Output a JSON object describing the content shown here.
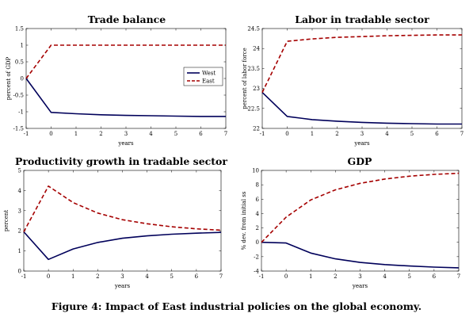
{
  "caption": "Figure 4: Impact of East industrial policies on the global economy.",
  "colors": {
    "west": "#00005a",
    "east": "#a50000",
    "axis": "#000000"
  },
  "chart_data": [
    {
      "type": "line",
      "title": "Trade balance",
      "xlabel": "years",
      "ylabel": "percent of GDP",
      "xlim": [
        -1,
        7
      ],
      "ylim": [
        -1.5,
        1.5
      ],
      "xticks": [
        -1,
        0,
        1,
        2,
        3,
        4,
        5,
        6,
        7
      ],
      "yticks": [
        -1.5,
        -1,
        -0.5,
        0,
        0.5,
        1,
        1.5
      ],
      "ytick_labels": [
        "-1.5",
        "-1",
        "-0.5",
        "0",
        "0.5",
        "1",
        "1.5"
      ],
      "legend": {
        "position": "center-right",
        "entries": [
          "West",
          "East"
        ]
      },
      "x": [
        -1,
        0,
        1,
        2,
        3,
        4,
        5,
        6,
        7
      ],
      "series": [
        {
          "name": "West",
          "style": "solid",
          "color": "#00005a",
          "values": [
            0.0,
            -1.02,
            -1.06,
            -1.09,
            -1.11,
            -1.12,
            -1.13,
            -1.14,
            -1.14
          ]
        },
        {
          "name": "East",
          "style": "dashed",
          "color": "#a50000",
          "values": [
            0.0,
            1.0,
            1.0,
            1.0,
            1.0,
            1.0,
            1.0,
            1.0,
            1.0
          ]
        }
      ]
    },
    {
      "type": "line",
      "title": "Labor in tradable sector",
      "xlabel": "years",
      "ylabel": "percent of labor force",
      "xlim": [
        -1,
        7
      ],
      "ylim": [
        22,
        24.5
      ],
      "xticks": [
        -1,
        0,
        1,
        2,
        3,
        4,
        5,
        6,
        7
      ],
      "yticks": [
        22,
        22.5,
        23,
        23.5,
        24,
        24.5
      ],
      "ytick_labels": [
        "22",
        "22.5",
        "23",
        "23.5",
        "24",
        "24.5"
      ],
      "x": [
        -1,
        0,
        1,
        2,
        3,
        4,
        5,
        6,
        7
      ],
      "series": [
        {
          "style": "solid",
          "color": "#00005a",
          "values": [
            22.9,
            22.3,
            22.22,
            22.18,
            22.15,
            22.13,
            22.12,
            22.11,
            22.11
          ]
        },
        {
          "style": "dashed",
          "color": "#a50000",
          "values": [
            22.9,
            24.18,
            24.24,
            24.28,
            24.3,
            24.32,
            24.33,
            24.34,
            24.34
          ]
        }
      ]
    },
    {
      "type": "line",
      "title": "Productivity growth in tradable sector",
      "xlabel": "years",
      "ylabel": "percent",
      "xlim": [
        -1,
        7
      ],
      "ylim": [
        0,
        5
      ],
      "xticks": [
        -1,
        0,
        1,
        2,
        3,
        4,
        5,
        6,
        7
      ],
      "yticks": [
        0,
        1,
        2,
        3,
        4,
        5
      ],
      "ytick_labels": [
        "0",
        "1",
        "2",
        "3",
        "4",
        "5"
      ],
      "x": [
        -1,
        0,
        1,
        2,
        3,
        4,
        5,
        6,
        7
      ],
      "series": [
        {
          "style": "solid",
          "color": "#00005a",
          "values": [
            1.95,
            0.58,
            1.1,
            1.42,
            1.63,
            1.75,
            1.83,
            1.88,
            1.92
          ]
        },
        {
          "style": "dashed",
          "color": "#a50000",
          "values": [
            1.95,
            4.22,
            3.4,
            2.88,
            2.55,
            2.35,
            2.2,
            2.1,
            2.03
          ]
        }
      ]
    },
    {
      "type": "line",
      "title": "GDP",
      "xlabel": "years",
      "ylabel": "% dev. from initial ss",
      "xlim": [
        -1,
        7
      ],
      "ylim": [
        -4,
        10
      ],
      "xticks": [
        -1,
        0,
        1,
        2,
        3,
        4,
        5,
        6,
        7
      ],
      "yticks": [
        -4,
        -2,
        0,
        2,
        4,
        6,
        8,
        10
      ],
      "ytick_labels": [
        "-4",
        "-2",
        "0",
        "2",
        "4",
        "6",
        "8",
        "10"
      ],
      "x": [
        -1,
        0,
        1,
        2,
        3,
        4,
        5,
        6,
        7
      ],
      "series": [
        {
          "style": "solid",
          "color": "#00005a",
          "values": [
            0.0,
            -0.1,
            -1.5,
            -2.3,
            -2.8,
            -3.1,
            -3.3,
            -3.45,
            -3.55
          ]
        },
        {
          "style": "dashed",
          "color": "#a50000",
          "values": [
            0.0,
            3.5,
            5.9,
            7.3,
            8.2,
            8.8,
            9.2,
            9.45,
            9.6
          ]
        }
      ]
    }
  ]
}
